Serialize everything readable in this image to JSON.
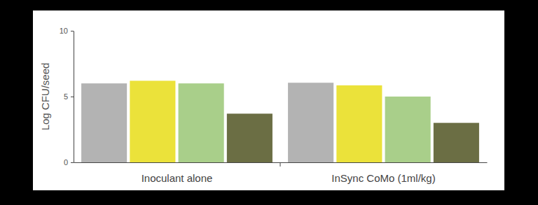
{
  "chart_data": {
    "type": "bar",
    "y_label": "Log CFU/seed",
    "categories": [
      "Inoculant alone",
      "InSync CoMo (1ml/kg)"
    ],
    "series": [
      {
        "color": "#b3b3b3",
        "values": [
          6.0,
          6.05
        ]
      },
      {
        "color": "#ebe23a",
        "values": [
          6.2,
          5.85
        ]
      },
      {
        "color": "#a9cf8a",
        "values": [
          6.0,
          5.0
        ]
      },
      {
        "color": "#6b6e44",
        "values": [
          3.7,
          3.0
        ]
      }
    ],
    "ylim": [
      0,
      10
    ],
    "yticks": [
      0,
      5,
      10
    ],
    "grid": false
  }
}
